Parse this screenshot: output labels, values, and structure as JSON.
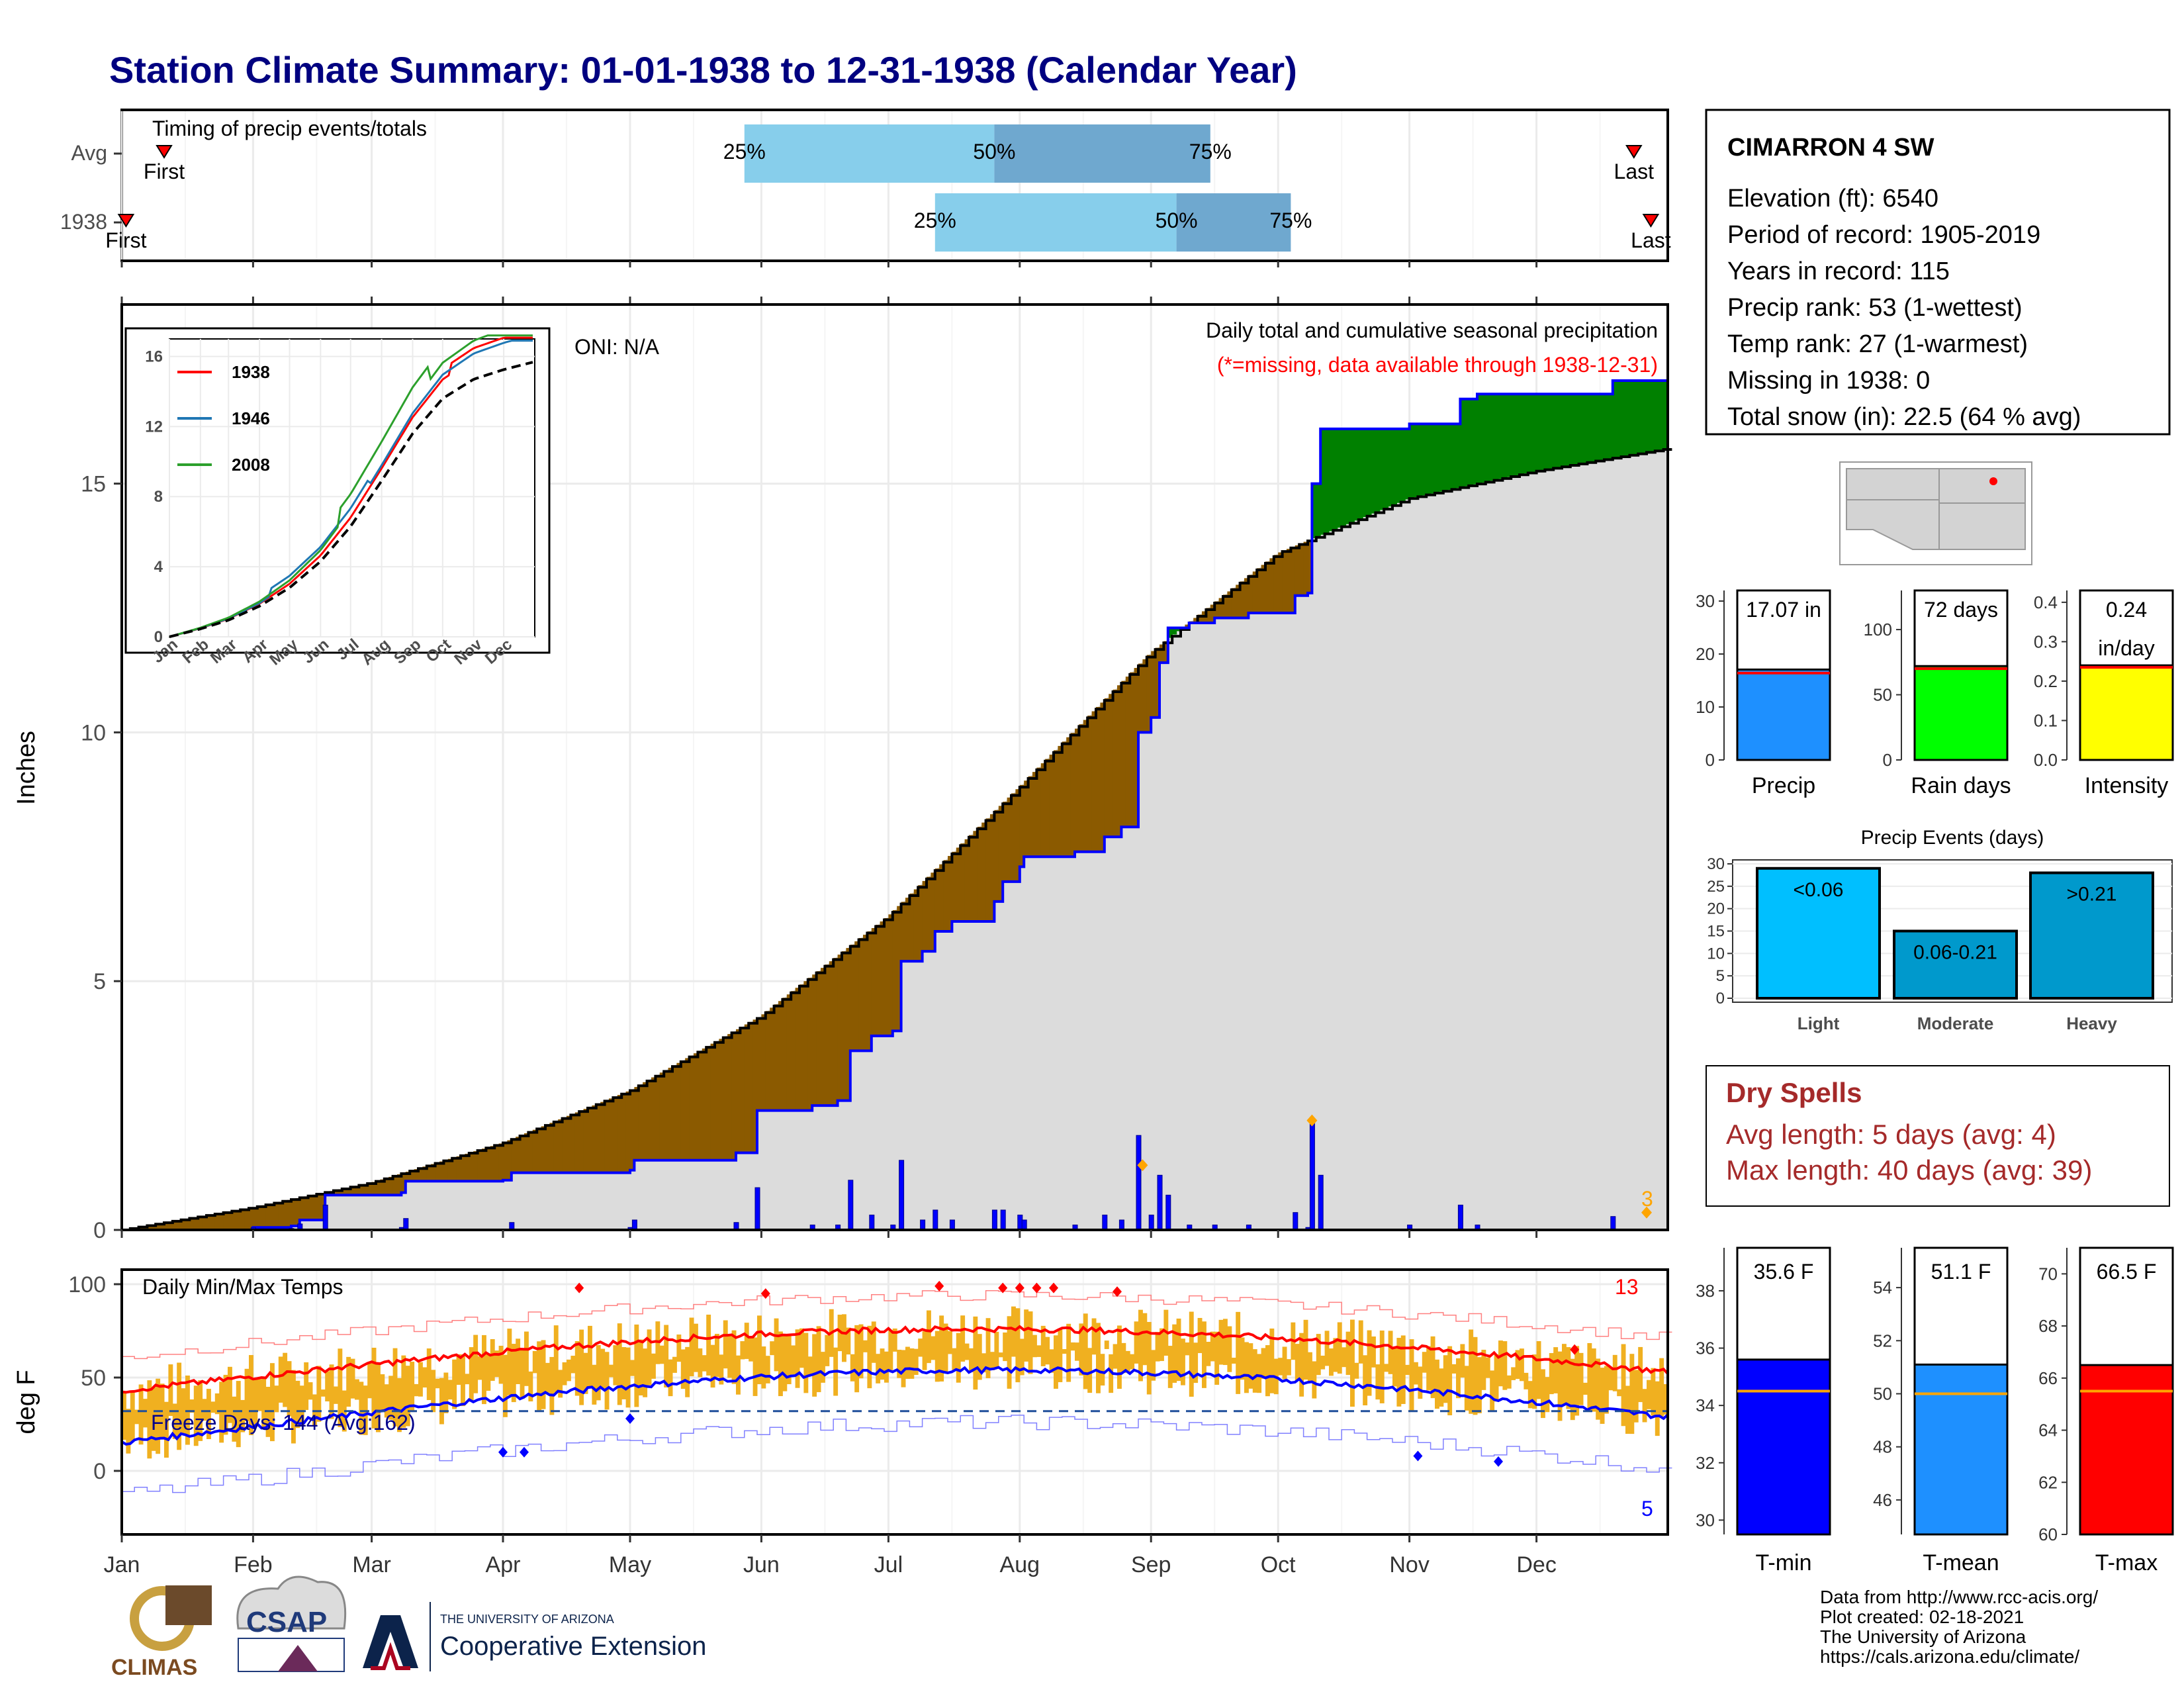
{
  "title": "Station Climate Summary: 01-01-1938 to 12-31-1938 (Calendar Year)",
  "colors": {
    "title": "#000080",
    "light": "#87ceeb",
    "dark": "#6fa8cf",
    "avg_fill": "#dcdcdc",
    "deficit": "#8b5a00",
    "surplus": "#008000",
    "obs_line": "#0000ff",
    "tmax": "#ff0000",
    "tmin": "#0000ff",
    "bars": "#f0b020",
    "dry": "#a52a2a"
  },
  "timing": {
    "title": "Timing of precip events/totals",
    "rows": [
      {
        "label": "Avg",
        "p25": "25%",
        "p50": "50%",
        "p75": "75%",
        "first": "First",
        "last": "Last",
        "p25_day": 147,
        "p50_day": 206,
        "p75_day": 257,
        "first_day": 10,
        "last_day": 357
      },
      {
        "label": "1938",
        "p25": "25%",
        "p50": "50%",
        "p75": "75%",
        "first": "First",
        "last": "Last",
        "p25_day": 192,
        "p50_day": 249,
        "p75_day": 276,
        "first_day": 1,
        "last_day": 361
      }
    ]
  },
  "main": {
    "ylabel": "Inches",
    "subtitle1": "Daily total and cumulative seasonal precipitation",
    "subtitle2": "(*=missing, data available through 1938-12-31)",
    "oni": "ONI: N/A",
    "yticks": [
      "0",
      "5",
      "10",
      "15"
    ],
    "ylim": [
      0,
      18.6
    ],
    "corner_count": "3"
  },
  "inset": {
    "yticks": [
      "0",
      "4",
      "8",
      "12",
      "16"
    ],
    "months": [
      "Jan",
      "Feb",
      "Mar",
      "Apr",
      "May",
      "Jun",
      "Jul",
      "Aug",
      "Sep",
      "Oct",
      "Nov",
      "Dec"
    ],
    "legend": [
      {
        "name": "1938",
        "color": "#ff0000"
      },
      {
        "name": "1946",
        "color": "#1f77b4"
      },
      {
        "name": "2008",
        "color": "#2ca02c"
      }
    ]
  },
  "temps": {
    "title": "Daily Min/Max Temps",
    "ylabel": "deg F",
    "yticks": [
      "0",
      "50",
      "100"
    ],
    "freeze": "Freeze Days: 144 (Avg:162)",
    "count_hot": "13",
    "count_cold": "5"
  },
  "months": [
    "Jan",
    "Feb",
    "Mar",
    "Apr",
    "May",
    "Jun",
    "Jul",
    "Aug",
    "Sep",
    "Oct",
    "Nov",
    "Dec"
  ],
  "station": {
    "name": "CIMARRON 4 SW",
    "lines": [
      "Elevation (ft): 6540",
      "Period of record: 1905-2019",
      "Years in record: 115",
      "Precip rank: 53 (1-wettest)",
      "Temp rank: 27 (1-warmest)",
      "Missing in 1938: 0",
      "Total snow (in): 22.5 (64 % avg)"
    ]
  },
  "gauges": [
    {
      "name": "Precip",
      "value_label": "17.07 in",
      "value": 17.07,
      "avg": 16.4,
      "max": 32,
      "ticks": [
        "0",
        "10",
        "20",
        "30"
      ],
      "tickvals": [
        0,
        10,
        20,
        30
      ],
      "color": "#1e90ff",
      "avg_color": "#ff0000"
    },
    {
      "name": "Rain days",
      "value_label": "72 days",
      "value": 72,
      "avg": 70,
      "max": 130,
      "ticks": [
        "0",
        "50",
        "100"
      ],
      "tickvals": [
        0,
        50,
        100
      ],
      "color": "#00ff00",
      "avg_color": "#ff0000"
    },
    {
      "name": "Intensity",
      "value_label": "0.24",
      "value_label2": "in/day",
      "value": 0.24,
      "avg": 0.235,
      "max": 0.43,
      "ticks": [
        "0.0",
        "0.1",
        "0.2",
        "0.3",
        "0.4"
      ],
      "tickvals": [
        0,
        0.1,
        0.2,
        0.3,
        0.4
      ],
      "color": "#ffff00",
      "avg_color": "#ff0000"
    }
  ],
  "events": {
    "title": "Precip Events (days)",
    "yticks": [
      "0",
      "5",
      "10",
      "15",
      "20",
      "25",
      "30"
    ],
    "bars": [
      {
        "label": "<0.06",
        "name": "Light",
        "value": 29,
        "color": "#00bfff"
      },
      {
        "label": "0.06-0.21",
        "name": "Moderate",
        "value": 15,
        "color": "#0099cc"
      },
      {
        "label": ">0.21",
        "name": "Heavy",
        "value": 28,
        "color": "#0099cc"
      }
    ]
  },
  "dry": {
    "title": "Dry Spells",
    "avg": "Avg length: 5 days (avg: 4)",
    "max": "Max length: 40 days (avg: 39)"
  },
  "temp_gauges": [
    {
      "name": "T-min",
      "value_label": "35.6 F",
      "value": 35.6,
      "avg": 34.5,
      "min": 29.5,
      "max": 39.5,
      "ticks": [
        "30",
        "32",
        "34",
        "36",
        "38"
      ],
      "tickvals": [
        30,
        32,
        34,
        36,
        38
      ],
      "color": "#0000ff"
    },
    {
      "name": "T-mean",
      "value_label": "51.1 F",
      "value": 51.1,
      "avg": 50.0,
      "min": 44.7,
      "max": 55.5,
      "ticks": [
        "46",
        "48",
        "50",
        "52",
        "54"
      ],
      "tickvals": [
        46,
        48,
        50,
        52,
        54
      ],
      "color": "#1e90ff"
    },
    {
      "name": "T-max",
      "value_label": "66.5 F",
      "value": 66.5,
      "avg": 65.5,
      "min": 60,
      "max": 71,
      "ticks": [
        "60",
        "62",
        "64",
        "66",
        "68",
        "70"
      ],
      "tickvals": [
        60,
        62,
        64,
        66,
        68,
        70
      ],
      "color": "#ff0000"
    }
  ],
  "logos": {
    "climas": "CLIMAS",
    "csap": "CSAP",
    "ua_small": "THE UNIVERSITY OF ARIZONA",
    "ua_big": "Cooperative Extension"
  },
  "footer": [
    "Data from http://www.rcc-acis.org/",
    "Plot created: 02-18-2021",
    "The University of Arizona",
    "https://cals.arizona.edu/climate/"
  ]
}
